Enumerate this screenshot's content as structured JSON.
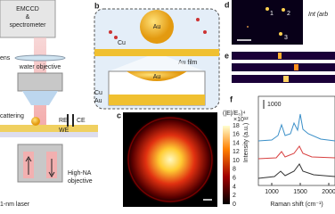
{
  "panel_a": {
    "detector": [
      "EMCCD",
      "&",
      "spectrometer"
    ],
    "lens": "ens",
    "objective": "water objective",
    "scattering": "cattering",
    "spp": "PP",
    "electrodes": [
      "RE",
      "CE",
      "WE"
    ],
    "high_na": [
      "High-NA",
      "objective"
    ],
    "laser": "1-nm laser"
  },
  "panel_b": {
    "label": "b",
    "particle": "Au",
    "molecule": "Cu",
    "film": "Au film",
    "inset_particle": "Au",
    "inset_molecule": "Cu",
    "inset_film": "Au"
  },
  "panel_c": {
    "label": "c",
    "colorbar_title": "(|E|/E₀)⁴",
    "colorbar_scale": "×10¹²",
    "colorbar_ticks": [
      18,
      16,
      14,
      12,
      10,
      8,
      6,
      4,
      2,
      0
    ]
  },
  "panel_d": {
    "label": "d",
    "spots": [
      "1",
      "2",
      "3"
    ],
    "axis_label": "Int (arb"
  },
  "panel_e": {
    "label": "e"
  },
  "panel_f": {
    "label": "f",
    "scale_bar": "1000",
    "y_label": "Intensity (a.u.)",
    "x_label": "Raman shift (cm⁻¹)",
    "x_ticks": [
      1000,
      1500,
      2000
    ]
  }
}
